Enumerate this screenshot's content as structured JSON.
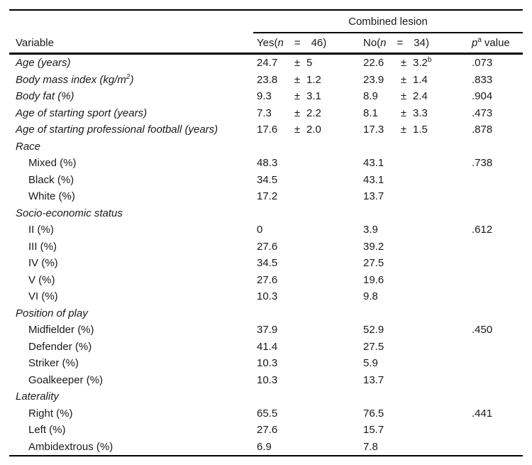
{
  "table": {
    "spanner": "Combined lesion",
    "col_variable": "Variable",
    "col_yes": {
      "pre": "Yes(",
      "n": "n",
      "eq": "=",
      "count": "46)"
    },
    "col_no": {
      "pre": "No(",
      "n": "n",
      "eq": "=",
      "count": "34)"
    },
    "col_p": {
      "p": "p",
      "sup": "a",
      "rest": "value"
    },
    "rows": [
      {
        "label": "Age (years)",
        "italic": true,
        "yes_v": "24.7",
        "yes_pm": "±",
        "yes_sd": "5",
        "no_v": "22.6",
        "no_pm": "±",
        "no_sd": "3.2",
        "no_sup": "b",
        "p": ".073"
      },
      {
        "label": "Body mass index (kg/m",
        "label_sup": "2",
        "label_post": ")",
        "italic": true,
        "yes_v": "23.8",
        "yes_pm": "±",
        "yes_sd": "1.2",
        "no_v": "23.9",
        "no_pm": "±",
        "no_sd": "1.4",
        "p": ".833"
      },
      {
        "label": "Body fat (%)",
        "italic": true,
        "yes_v": "9.3",
        "yes_pm": "±",
        "yes_sd": "3.1",
        "no_v": "8.9",
        "no_pm": "±",
        "no_sd": "2.4",
        "p": ".904"
      },
      {
        "label": "Age of starting sport (years)",
        "italic": true,
        "yes_v": "7.3",
        "yes_pm": "±",
        "yes_sd": "2.2",
        "no_v": "8.1",
        "no_pm": "±",
        "no_sd": "3.3",
        "p": ".473"
      },
      {
        "label": "Age of starting professional football (years)",
        "italic": true,
        "yes_v": "17.6",
        "yes_pm": "±",
        "yes_sd": "2.0",
        "no_v": "17.3",
        "no_pm": "±",
        "no_sd": "1.5",
        "p": ".878"
      },
      {
        "label": "Race",
        "italic": true
      },
      {
        "label": "Mixed (%)",
        "indent": true,
        "yes_v": "48.3",
        "no_v": "43.1",
        "p": ".738"
      },
      {
        "label": "Black (%)",
        "indent": true,
        "yes_v": "34.5",
        "no_v": "43.1"
      },
      {
        "label": "White (%)",
        "indent": true,
        "yes_v": "17.2",
        "no_v": "13.7"
      },
      {
        "label": "Socio-economic status",
        "italic": true
      },
      {
        "label": "II (%)",
        "indent": true,
        "yes_v": "0",
        "no_v": "3.9",
        "p": ".612"
      },
      {
        "label": "III (%)",
        "indent": true,
        "yes_v": "27.6",
        "no_v": "39.2"
      },
      {
        "label": "IV (%)",
        "indent": true,
        "yes_v": "34.5",
        "no_v": "27.5"
      },
      {
        "label": "V (%)",
        "indent": true,
        "yes_v": "27.6",
        "no_v": "19.6"
      },
      {
        "label": "VI (%)",
        "indent": true,
        "yes_v": "10.3",
        "no_v": "9.8"
      },
      {
        "label": "Position of play",
        "italic": true
      },
      {
        "label": "Midfielder (%)",
        "indent": true,
        "yes_v": "37.9",
        "no_v": "52.9",
        "p": ".450"
      },
      {
        "label": "Defender (%)",
        "indent": true,
        "yes_v": "41.4",
        "no_v": "27.5"
      },
      {
        "label": "Striker (%)",
        "indent": true,
        "yes_v": "10.3",
        "no_v": "5.9"
      },
      {
        "label": "Goalkeeper (%)",
        "indent": true,
        "yes_v": "10.3",
        "no_v": "13.7"
      },
      {
        "label": "Laterality",
        "italic": true
      },
      {
        "label": "Right (%)",
        "indent": true,
        "yes_v": "65.5",
        "no_v": "76.5",
        "p": ".441"
      },
      {
        "label": "Left (%)",
        "indent": true,
        "yes_v": "27.6",
        "no_v": "15.7"
      },
      {
        "label": "Ambidextrous (%)",
        "indent": true,
        "yes_v": "6.9",
        "no_v": "7.8"
      }
    ]
  }
}
